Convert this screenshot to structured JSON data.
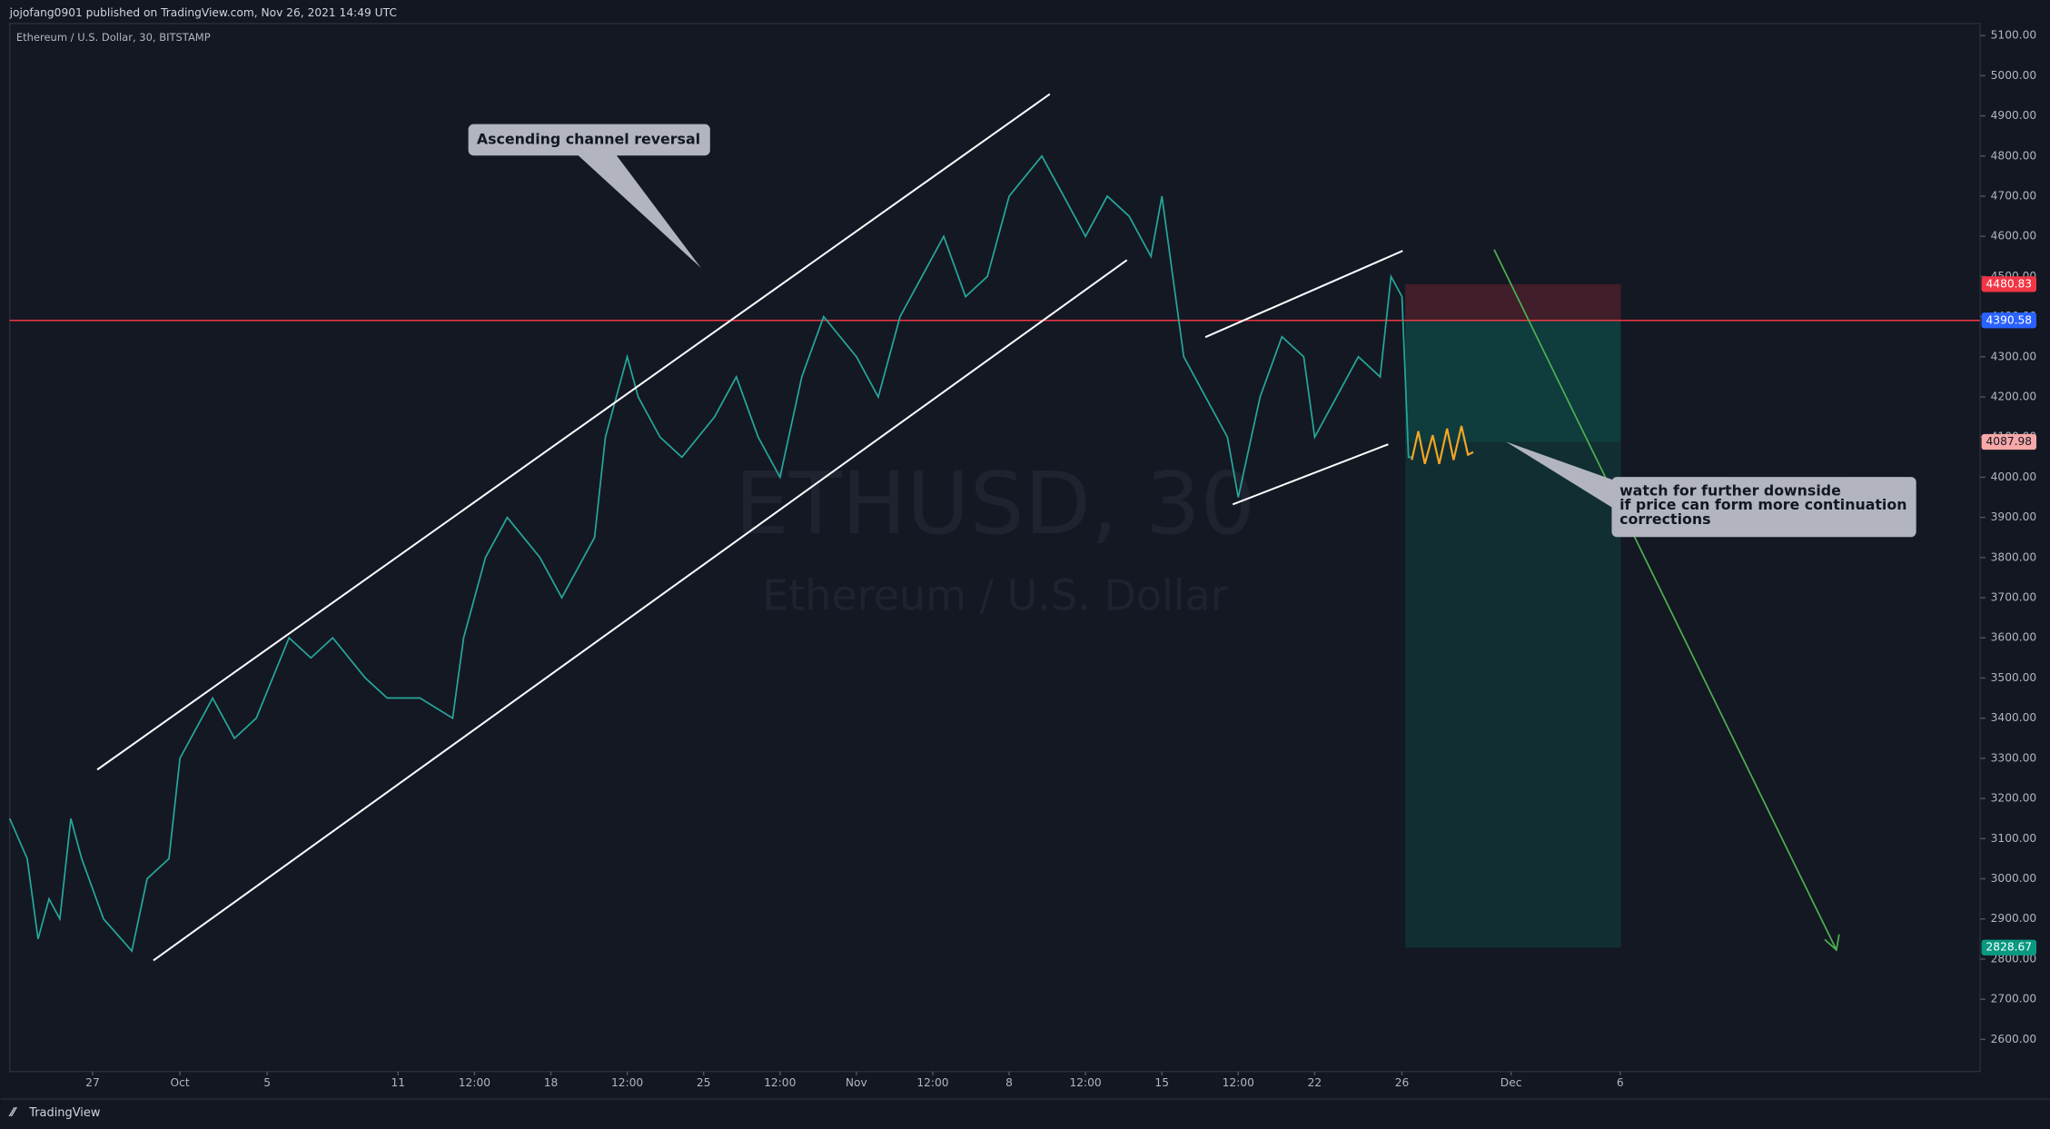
{
  "header": "jojofang0901 published on TradingView.com, Nov 26, 2021 14:49 UTC",
  "symbol": "Ethereum / U.S. Dollar, 30, BITSTAMP",
  "watermark": {
    "ticker": "ETHUSD, 30",
    "name": "Ethereum / U.S. Dollar"
  },
  "annotations": {
    "channel": "Ascending channel reversal",
    "note": [
      "watch for further downside",
      "if price can form more continuation",
      "corrections"
    ]
  },
  "footer": "TradingView",
  "chart_data": {
    "type": "line",
    "color": "#26a69a",
    "x": [
      -7.8,
      -7,
      -6.5,
      -6,
      -5.5,
      -5,
      -4.5,
      -3.5,
      -2.2,
      -1.5,
      -0.5,
      0,
      1,
      1.5,
      2.5,
      3.5,
      5,
      6,
      7,
      8.5,
      9.5,
      11,
      12.5,
      13,
      14,
      15,
      16.5,
      17.5,
      19,
      19.5,
      20.5,
      21,
      22,
      23,
      24.5,
      25.5,
      26.5,
      27.5,
      28.5,
      29.5,
      31,
      32,
      33,
      34,
      35,
      36,
      37,
      38,
      39.5,
      40.5,
      41.5,
      42.5,
      43.5,
      44.5,
      45,
      45.5,
      46,
      47,
      48,
      48.5,
      49.5,
      50.5,
      51.5,
      52,
      53,
      54,
      55,
      55.5,
      56,
      56.3,
      56.5
    ],
    "values": [
      3150,
      3050,
      2850,
      2950,
      2900,
      3150,
      3050,
      2900,
      2820,
      3000,
      3050,
      3300,
      3400,
      3450,
      3350,
      3400,
      3600,
      3550,
      3600,
      3500,
      3450,
      3450,
      3400,
      3600,
      3800,
      3900,
      3800,
      3700,
      3850,
      4100,
      4300,
      4200,
      4100,
      4050,
      4150,
      4250,
      4100,
      4000,
      4250,
      4400,
      4300,
      4200,
      4400,
      4500,
      4600,
      4450,
      4500,
      4700,
      4800,
      4700,
      4600,
      4700,
      4650,
      4550,
      4700,
      4500,
      4300,
      4200,
      4100,
      3950,
      4200,
      4350,
      4300,
      4100,
      4200,
      4300,
      4250,
      4500,
      4450,
      4050,
      4050
    ],
    "xlim": [
      -7.8,
      82.5
    ],
    "xticks": [
      {
        "value": -4,
        "label": "27"
      },
      {
        "value": 0,
        "label": "Oct"
      },
      {
        "value": 4,
        "label": "5"
      },
      {
        "value": 10,
        "label": "11"
      },
      {
        "value": 13.5,
        "label": "12:00"
      },
      {
        "value": 17,
        "label": "18"
      },
      {
        "value": 20.5,
        "label": "12:00"
      },
      {
        "value": 24,
        "label": "25"
      },
      {
        "value": 27.5,
        "label": "12:00"
      },
      {
        "value": 31,
        "label": "Nov"
      },
      {
        "value": 34.5,
        "label": "12:00"
      },
      {
        "value": 38,
        "label": "8"
      },
      {
        "value": 41.5,
        "label": "12:00"
      },
      {
        "value": 45,
        "label": "15"
      },
      {
        "value": 48.5,
        "label": "12:00"
      },
      {
        "value": 52,
        "label": "22"
      },
      {
        "value": 56,
        "label": "26"
      },
      {
        "value": 61,
        "label": "Dec"
      },
      {
        "value": 66,
        "label": "6"
      }
    ],
    "ylim": [
      2520,
      5130
    ],
    "yticks": [
      {
        "value": 2600,
        "label": "2600.00"
      },
      {
        "value": 2700,
        "label": "2700.00"
      },
      {
        "value": 2800,
        "label": "2800.00"
      },
      {
        "value": 2900,
        "label": "2900.00"
      },
      {
        "value": 3000,
        "label": "3000.00"
      },
      {
        "value": 3100,
        "label": "3100.00"
      },
      {
        "value": 3200,
        "label": "3200.00"
      },
      {
        "value": 3300,
        "label": "3300.00"
      },
      {
        "value": 3400,
        "label": "3400.00"
      },
      {
        "value": 3500,
        "label": "3500.00"
      },
      {
        "value": 3600,
        "label": "3600.00"
      },
      {
        "value": 3700,
        "label": "3700.00"
      },
      {
        "value": 3800,
        "label": "3800.00"
      },
      {
        "value": 3900,
        "label": "3900.00"
      },
      {
        "value": 4000,
        "label": "4000.00"
      },
      {
        "value": 4100,
        "label": "4100.00"
      },
      {
        "value": 4200,
        "label": "4200.00"
      },
      {
        "value": 4300,
        "label": "4300.00"
      },
      {
        "value": 4400,
        "label": "4400.00"
      },
      {
        "value": 4500,
        "label": "4500.00"
      },
      {
        "value": 4600,
        "label": "4600.00"
      },
      {
        "value": 4700,
        "label": "4700.00"
      },
      {
        "value": 4800,
        "label": "4800.00"
      },
      {
        "value": 4900,
        "label": "4900.00"
      },
      {
        "value": 5000,
        "label": "5000.00"
      },
      {
        "value": 5100,
        "label": "5100.00"
      }
    ],
    "levels": [
      {
        "value": 4480.83,
        "color": "#f23645"
      },
      {
        "value": 4390.58,
        "color": "#2962ff"
      },
      {
        "value": 4087.98,
        "color": "#f7a8a8"
      },
      {
        "value": 2828.67,
        "color": "#089981"
      }
    ]
  }
}
